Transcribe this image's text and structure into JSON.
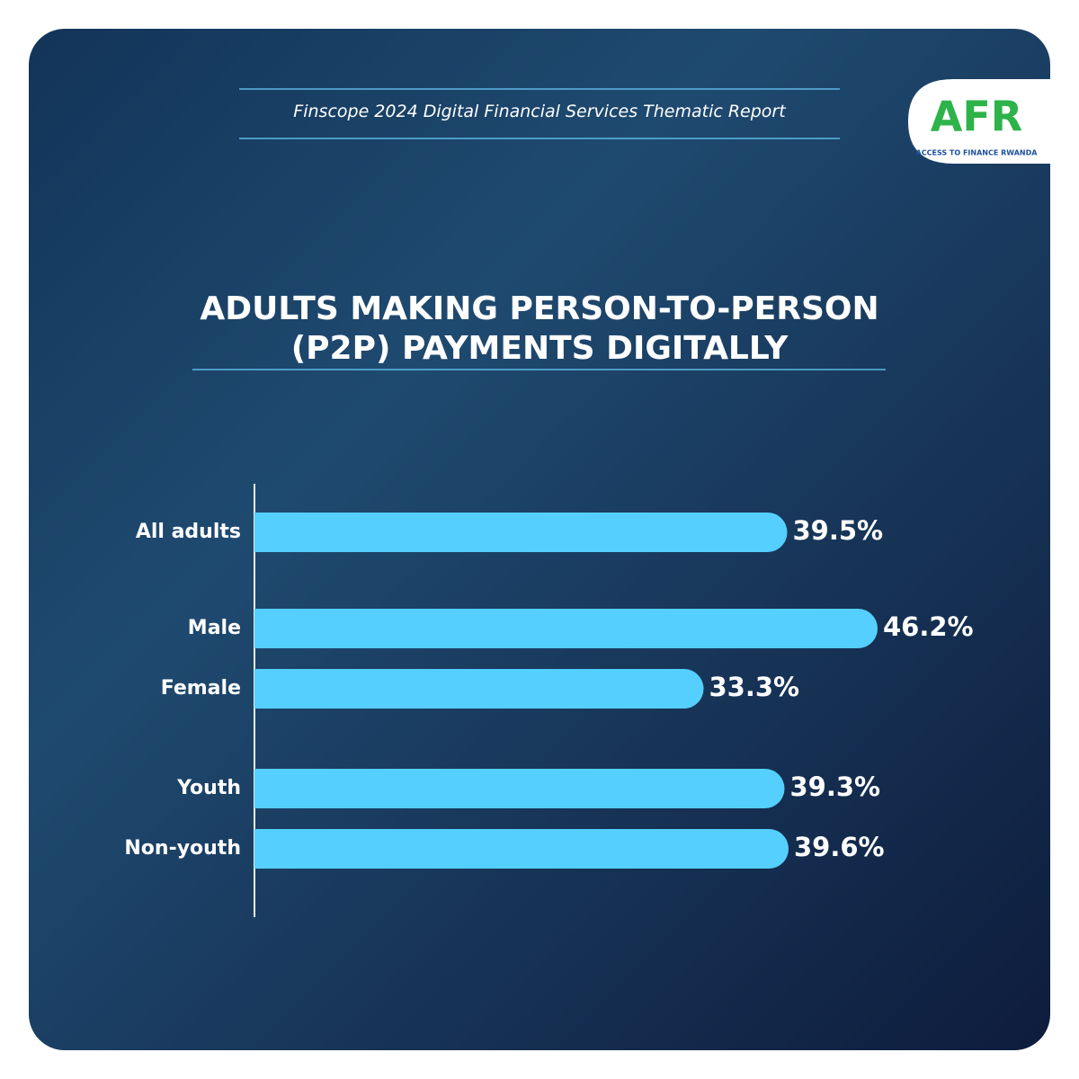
{
  "header": {
    "report": "Finscope 2024 Digital Financial Services Thematic Report"
  },
  "logo": {
    "mark": "AFR",
    "name": "ACCESS TO FINANCE RWANDA"
  },
  "chart_data": {
    "type": "bar",
    "orientation": "horizontal",
    "title": "ADULTS MAKING PERSON-TO-PERSON (P2P) PAYMENTS DIGITALLY",
    "categories": [
      "All adults",
      "Male",
      "Female",
      "Youth",
      "Non-youth"
    ],
    "values": [
      39.5,
      46.2,
      33.3,
      39.3,
      39.6
    ],
    "value_labels": [
      "39.5%",
      "46.2%",
      "33.3%",
      "39.3%",
      "39.6%"
    ],
    "color": "#55cffd"
  }
}
